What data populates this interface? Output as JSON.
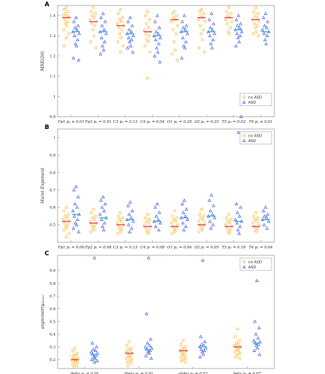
{
  "colors": {
    "no_asd_marker": "#f5b82e",
    "asd_marker": "#3b55d9",
    "no_asd_median": "#e8357a",
    "asd_median": "#2fb5e8"
  },
  "chart_data": [
    {
      "panel_label": "A",
      "type": "scatter",
      "subtype": "beeswarm",
      "ylabel": "MSE(20)",
      "ylim": [
        0.9,
        1.45
      ],
      "yticks": [
        "0.9",
        "1",
        "1.1",
        "1.2",
        "1.3",
        "1.4"
      ],
      "categories": [
        "Fp1 pₐ ≤ 0.01",
        "Fp2 pₐ = 0.01",
        "C3 pₐ = 0.13",
        "C4 pₐ = 0.04",
        "O1 pₐ = 0.29",
        "O2 pₐ = 0.25",
        "T3 pₐ = 0.02",
        "T4 pₐ ≤ 0.01"
      ],
      "legend": {
        "position": "bottom-right",
        "entries": [
          "no ASD",
          "ASD"
        ]
      },
      "series": [
        {
          "name": "no ASD",
          "medians": [
            1.39,
            1.37,
            1.35,
            1.32,
            1.38,
            1.39,
            1.39,
            1.38
          ],
          "points": [
            [
              1.44,
              1.43,
              1.42,
              1.41,
              1.4,
              1.4,
              1.39,
              1.38,
              1.37,
              1.36,
              1.35,
              1.33,
              1.31,
              1.29,
              1.25
            ],
            [
              1.44,
              1.42,
              1.41,
              1.4,
              1.39,
              1.38,
              1.37,
              1.36,
              1.35,
              1.33,
              1.3,
              1.27,
              1.24
            ],
            [
              1.43,
              1.41,
              1.39,
              1.38,
              1.37,
              1.36,
              1.35,
              1.34,
              1.33,
              1.31,
              1.29,
              1.27,
              1.25,
              1.22
            ],
            [
              1.42,
              1.4,
              1.38,
              1.36,
              1.34,
              1.33,
              1.32,
              1.31,
              1.3,
              1.28,
              1.27,
              1.25,
              1.22,
              1.09
            ],
            [
              1.42,
              1.41,
              1.4,
              1.39,
              1.38,
              1.37,
              1.35,
              1.33,
              1.31,
              1.27,
              1.23,
              1.21,
              1.18
            ],
            [
              1.43,
              1.42,
              1.41,
              1.4,
              1.39,
              1.38,
              1.37,
              1.35,
              1.33,
              1.31,
              1.28,
              1.24,
              1.22
            ],
            [
              1.44,
              1.42,
              1.41,
              1.4,
              1.39,
              1.38,
              1.37,
              1.36,
              1.34,
              1.32,
              1.31
            ],
            [
              1.44,
              1.42,
              1.41,
              1.4,
              1.39,
              1.38,
              1.37,
              1.36,
              1.35,
              1.34,
              1.32,
              1.31,
              1.3
            ]
          ]
        },
        {
          "name": "ASD",
          "medians": [
            1.32,
            1.32,
            1.31,
            1.3,
            1.32,
            1.32,
            1.33,
            1.32
          ],
          "points": [
            [
              1.39,
              1.37,
              1.35,
              1.34,
              1.33,
              1.32,
              1.31,
              1.3,
              1.28,
              1.26,
              1.25,
              1.19,
              1.18
            ],
            [
              1.41,
              1.39,
              1.37,
              1.35,
              1.33,
              1.32,
              1.31,
              1.29,
              1.27,
              1.25,
              1.23,
              1.21
            ],
            [
              1.39,
              1.37,
              1.35,
              1.33,
              1.32,
              1.31,
              1.3,
              1.29,
              1.28,
              1.27,
              1.25,
              1.24,
              1.22
            ],
            [
              1.4,
              1.37,
              1.34,
              1.32,
              1.31,
              1.3,
              1.29,
              1.28,
              1.26,
              1.24,
              1.22,
              1.2,
              1.17
            ],
            [
              1.4,
              1.37,
              1.35,
              1.34,
              1.33,
              1.32,
              1.31,
              1.29,
              1.27,
              1.25,
              1.24,
              1.19
            ],
            [
              1.41,
              1.38,
              1.36,
              1.34,
              1.33,
              1.32,
              1.31,
              1.3,
              1.28,
              1.26,
              1.24
            ],
            [
              1.4,
              1.38,
              1.36,
              1.35,
              1.34,
              1.33,
              1.32,
              1.31,
              1.3,
              1.29,
              1.27,
              1.25,
              0.9
            ],
            [
              1.41,
              1.39,
              1.37,
              1.35,
              1.34,
              1.33,
              1.32,
              1.31,
              1.3,
              1.28,
              1.26
            ]
          ]
        }
      ]
    },
    {
      "panel_label": "B",
      "type": "scatter",
      "subtype": "beeswarm",
      "ylabel": "Hurst Exponent",
      "ylim": [
        0.4,
        1.05
      ],
      "yticks": [
        "0.5",
        "0.6",
        "0.7",
        "0.8",
        "0.9",
        "1"
      ],
      "categories": [
        "Fp1 pₐ = 0.06",
        "Fp2 pₐ = 0.08",
        "C3 pₐ = 0.13",
        "C4 pₐ = 0.08",
        "O1 pₐ = 0.04",
        "O2 pₐ = 0.05",
        "T3 pₐ = 0.18",
        "T4 pₐ = 0.04"
      ],
      "legend": {
        "position": "top-right",
        "entries": [
          "no ASD",
          "ASD"
        ]
      },
      "series": [
        {
          "name": "no ASD",
          "medians": [
            0.52,
            0.51,
            0.5,
            0.49,
            0.49,
            0.5,
            0.49,
            0.49
          ],
          "points": [
            [
              0.6,
              0.58,
              0.56,
              0.55,
              0.54,
              0.53,
              0.52,
              0.51,
              0.5,
              0.49,
              0.48,
              0.47,
              0.45,
              0.43
            ],
            [
              0.59,
              0.57,
              0.55,
              0.54,
              0.53,
              0.52,
              0.51,
              0.5,
              0.49,
              0.48,
              0.47,
              0.46
            ],
            [
              0.57,
              0.55,
              0.54,
              0.53,
              0.52,
              0.51,
              0.5,
              0.49,
              0.48,
              0.47,
              0.46,
              0.45
            ],
            [
              0.56,
              0.54,
              0.53,
              0.52,
              0.51,
              0.5,
              0.49,
              0.48,
              0.47,
              0.46,
              0.45
            ],
            [
              0.58,
              0.55,
              0.54,
              0.53,
              0.52,
              0.51,
              0.5,
              0.49,
              0.48,
              0.47,
              0.46,
              0.45
            ],
            [
              0.59,
              0.56,
              0.55,
              0.54,
              0.53,
              0.52,
              0.51,
              0.5,
              0.49,
              0.48,
              0.47,
              0.46
            ],
            [
              0.56,
              0.54,
              0.53,
              0.52,
              0.51,
              0.5,
              0.49,
              0.48,
              0.47,
              0.46,
              0.45
            ],
            [
              0.57,
              0.55,
              0.54,
              0.53,
              0.52,
              0.51,
              0.5,
              0.49,
              0.48,
              0.47,
              0.46
            ]
          ]
        },
        {
          "name": "ASD",
          "medians": [
            0.56,
            0.54,
            0.53,
            0.52,
            0.54,
            0.55,
            0.52,
            0.53
          ],
          "points": [
            [
              0.72,
              0.7,
              0.66,
              0.62,
              0.6,
              0.58,
              0.56,
              0.55,
              0.53,
              0.51,
              0.5,
              0.48,
              0.46
            ],
            [
              0.66,
              0.64,
              0.62,
              0.6,
              0.58,
              0.56,
              0.54,
              0.53,
              0.51,
              0.49,
              0.47
            ],
            [
              0.63,
              0.61,
              0.58,
              0.56,
              0.54,
              0.53,
              0.52,
              0.5,
              0.48,
              0.46
            ],
            [
              0.62,
              0.6,
              0.57,
              0.55,
              0.53,
              0.52,
              0.51,
              0.49,
              0.47
            ],
            [
              0.64,
              0.62,
              0.59,
              0.57,
              0.55,
              0.54,
              0.53,
              0.51,
              0.49,
              0.47
            ],
            [
              0.67,
              0.64,
              0.61,
              0.58,
              0.56,
              0.55,
              0.54,
              0.52,
              0.5,
              0.48
            ],
            [
              1.03,
              0.62,
              0.6,
              0.57,
              0.55,
              0.53,
              0.52,
              0.51,
              0.49,
              0.47,
              0.45
            ],
            [
              0.6,
              0.58,
              0.56,
              0.55,
              0.54,
              0.53,
              0.52,
              0.5,
              0.48
            ]
          ]
        }
      ]
    },
    {
      "panel_label": "C",
      "type": "scatter",
      "subtype": "beeswarm",
      "ylabel": "asymmetryₐᵤₑᵤᵤ",
      "ylim": [
        0.13,
        1.02
      ],
      "yticks": [
        "0.2",
        "0.3",
        "0.4",
        "0.5",
        "0.6",
        "0.7",
        "0.8",
        "0.9"
      ],
      "categories": [
        "delta pₐ ≤ 0.01",
        "theta pₐ = 0.01",
        "alpha pₐ = 0.02",
        "beta pₐ = 0.07"
      ],
      "legend": {
        "position": "top-right",
        "entries": [
          "no ASD",
          "ASD"
        ]
      },
      "series": [
        {
          "name": "no ASD",
          "medians": [
            0.2,
            0.25,
            0.27,
            0.3
          ],
          "points": [
            [
              0.29,
              0.27,
              0.25,
              0.24,
              0.23,
              0.22,
              0.21,
              0.21,
              0.2,
              0.2,
              0.19,
              0.19,
              0.18,
              0.17,
              0.16,
              0.15,
              0.14
            ],
            [
              0.34,
              0.31,
              0.29,
              0.28,
              0.27,
              0.26,
              0.25,
              0.25,
              0.24,
              0.23,
              0.22,
              0.21,
              0.2,
              0.19,
              0.18,
              0.17,
              0.15
            ],
            [
              0.35,
              0.32,
              0.3,
              0.29,
              0.28,
              0.27,
              0.27,
              0.26,
              0.25,
              0.24,
              0.23,
              0.22,
              0.21,
              0.2,
              0.19,
              0.18
            ],
            [
              0.44,
              0.38,
              0.35,
              0.33,
              0.32,
              0.31,
              0.3,
              0.3,
              0.29,
              0.28,
              0.27,
              0.26,
              0.25,
              0.24,
              0.22,
              0.21
            ]
          ]
        },
        {
          "name": "ASD",
          "medians": [
            0.24,
            0.28,
            0.3,
            0.33
          ],
          "points": [
            [
              1.0,
              0.33,
              0.3,
              0.28,
              0.27,
              0.26,
              0.25,
              0.24,
              0.23,
              0.22,
              0.21,
              0.2,
              0.19,
              0.18
            ],
            [
              1.0,
              0.56,
              0.36,
              0.33,
              0.31,
              0.3,
              0.29,
              0.28,
              0.27,
              0.26,
              0.25,
              0.23,
              0.21
            ],
            [
              0.98,
              0.38,
              0.34,
              0.32,
              0.31,
              0.3,
              0.29,
              0.28,
              0.27,
              0.26,
              0.24,
              0.22
            ],
            [
              0.82,
              0.5,
              0.45,
              0.4,
              0.37,
              0.35,
              0.34,
              0.33,
              0.32,
              0.31,
              0.29,
              0.27,
              0.24
            ]
          ]
        }
      ]
    }
  ]
}
